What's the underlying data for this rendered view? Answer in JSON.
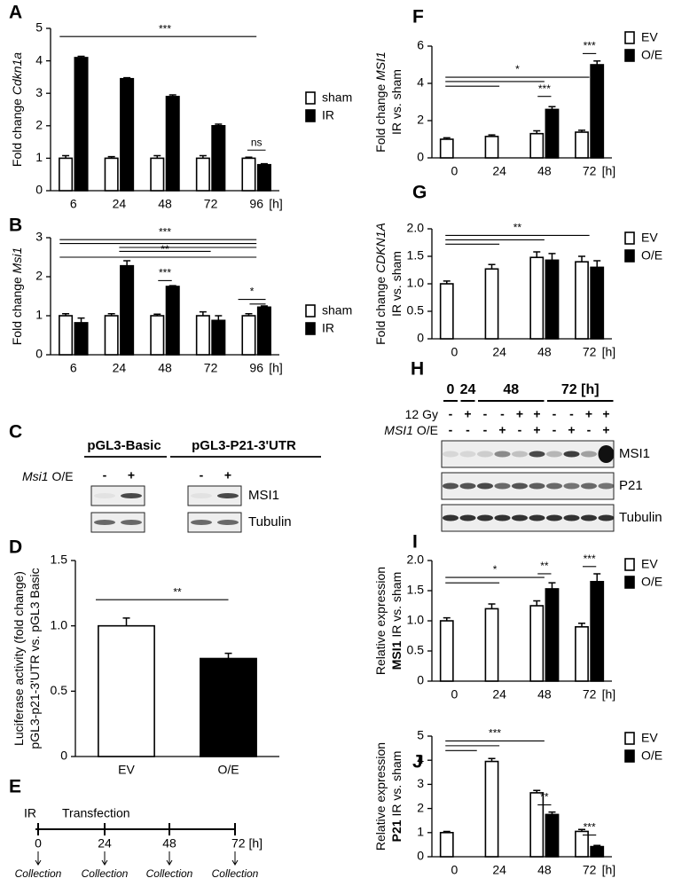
{
  "chart_data": [
    {
      "panel": "A",
      "type": "bar",
      "y_label": [
        [
          {
            "text": "Fold change "
          },
          {
            "text": "Cdkn1a",
            "style": "italic"
          }
        ]
      ],
      "categories": [
        "6",
        "24",
        "48",
        "72",
        "96"
      ],
      "x_unit": "[h]",
      "series": [
        {
          "name": "sham",
          "color": "#ffffff",
          "values": [
            1,
            1,
            1,
            1,
            1
          ],
          "errors": [
            0.08,
            0.05,
            0.08,
            0.08,
            0.03
          ]
        },
        {
          "name": "IR",
          "color": "#000000",
          "values": [
            4.1,
            3.45,
            2.9,
            2.0,
            0.8
          ],
          "errors": [
            0.04,
            0.03,
            0.05,
            0.05,
            0.03
          ]
        }
      ],
      "ylim": [
        0,
        5
      ],
      "yticks": [
        0,
        1,
        2,
        3,
        4,
        5
      ],
      "annotations": [
        "***",
        "ns"
      ]
    },
    {
      "panel": "B",
      "type": "bar",
      "y_label": [
        [
          {
            "text": "Fold change "
          },
          {
            "text": "Msi1",
            "style": "italic"
          }
        ]
      ],
      "categories": [
        "6",
        "24",
        "48",
        "72",
        "96"
      ],
      "x_unit": "[h]",
      "series": [
        {
          "name": "sham",
          "color": "#ffffff",
          "values": [
            1,
            1,
            1,
            1,
            1
          ],
          "errors": [
            0.05,
            0.05,
            0.04,
            0.1,
            0.05
          ]
        },
        {
          "name": "IR",
          "color": "#000000",
          "values": [
            0.82,
            2.28,
            1.75,
            0.88,
            1.22
          ],
          "errors": [
            0.12,
            0.13,
            0.02,
            0.12,
            0.03
          ]
        }
      ],
      "ylim": [
        0,
        3
      ],
      "yticks": [
        0,
        1,
        2,
        3
      ],
      "annotations": [
        "***",
        "**",
        "***",
        "*"
      ]
    },
    {
      "panel": "D",
      "type": "bar",
      "y_label": [
        [
          {
            "text": "Luciferase activity (fold change)"
          }
        ],
        [
          {
            "text": "pGL3-p21-3'UTR vs. pGL3 Basic"
          }
        ]
      ],
      "categories": [
        "EV",
        "O/E"
      ],
      "values": [
        1.0,
        0.75
      ],
      "errors": [
        0.06,
        0.04
      ],
      "colors": [
        "#ffffff",
        "#000000"
      ],
      "ylim": [
        0,
        1.5
      ],
      "yticks": [
        0,
        0.5,
        {
          "value": 1,
          "label": "1.0"
        },
        1.5
      ],
      "annotations": [
        "**"
      ]
    },
    {
      "panel": "F",
      "type": "bar",
      "y_label": [
        [
          {
            "text": "Fold change "
          },
          {
            "text": "MSI1",
            "style": "italic"
          }
        ],
        [
          {
            "text": "IR vs. sham"
          }
        ]
      ],
      "categories": [
        "0",
        "24",
        "48",
        "72"
      ],
      "x_unit": "[h]",
      "series": [
        {
          "name": "EV",
          "color": "#ffffff",
          "values": [
            1.0,
            1.15,
            1.3,
            1.38
          ],
          "errors": [
            0.08,
            0.08,
            0.15,
            0.1
          ]
        },
        {
          "name": "O/E",
          "color": "#000000",
          "values": [
            null,
            null,
            2.6,
            5.0
          ],
          "errors": [
            null,
            null,
            0.15,
            0.2
          ]
        }
      ],
      "ylim": [
        0,
        6
      ],
      "yticks": [
        0,
        2,
        4,
        6
      ],
      "annotations": [
        "*",
        "***",
        "***"
      ]
    },
    {
      "panel": "G",
      "type": "bar",
      "y_label": [
        [
          {
            "text": "Fold change "
          },
          {
            "text": "CDKN1A",
            "style": "italic"
          }
        ],
        [
          {
            "text": "IR vs. sham"
          }
        ]
      ],
      "categories": [
        "0",
        "24",
        "48",
        "72"
      ],
      "x_unit": "[h]",
      "series": [
        {
          "name": "EV",
          "color": "#ffffff",
          "values": [
            1.0,
            1.27,
            1.48,
            1.4
          ],
          "errors": [
            0.05,
            0.08,
            0.1,
            0.1
          ]
        },
        {
          "name": "O/E",
          "color": "#000000",
          "values": [
            null,
            null,
            1.43,
            1.3
          ],
          "errors": [
            null,
            null,
            0.12,
            0.12
          ]
        }
      ],
      "ylim": [
        0,
        2
      ],
      "yticks": [
        0,
        0.5,
        {
          "value": 1,
          "label": "1.0"
        },
        1.5,
        {
          "value": 2,
          "label": "2.0"
        }
      ],
      "annotations": [
        "**"
      ]
    },
    {
      "panel": "I",
      "type": "bar",
      "y_label": [
        [
          {
            "text": "Relative expression"
          }
        ],
        [
          {
            "text": "MSI1",
            "style": "bold"
          },
          {
            "text": " IR vs. sham"
          }
        ]
      ],
      "categories": [
        "0",
        "24",
        "48",
        "72"
      ],
      "x_unit": "[h]",
      "series": [
        {
          "name": "EV",
          "color": "#ffffff",
          "values": [
            1.0,
            1.2,
            1.25,
            0.9
          ],
          "errors": [
            0.05,
            0.08,
            0.08,
            0.06
          ]
        },
        {
          "name": "O/E",
          "color": "#000000",
          "values": [
            null,
            null,
            1.53,
            1.65
          ],
          "errors": [
            null,
            null,
            0.1,
            0.13
          ]
        }
      ],
      "ylim": [
        0,
        2
      ],
      "yticks": [
        0,
        0.5,
        {
          "value": 1,
          "label": "1.0"
        },
        1.5,
        {
          "value": 2,
          "label": "2.0"
        }
      ],
      "annotations": [
        "*",
        "**",
        "***"
      ]
    },
    {
      "panel": "J",
      "type": "bar",
      "y_label": [
        [
          {
            "text": "Relative expression"
          }
        ],
        [
          {
            "text": "P21",
            "style": "bold"
          },
          {
            "text": " IR vs. sham"
          }
        ]
      ],
      "categories": [
        "0",
        "24",
        "48",
        "72"
      ],
      "x_unit": "[h]",
      "series": [
        {
          "name": "EV",
          "color": "#ffffff",
          "values": [
            1.0,
            3.95,
            2.65,
            1.05
          ],
          "errors": [
            0.05,
            0.12,
            0.1,
            0.08
          ]
        },
        {
          "name": "O/E",
          "color": "#000000",
          "values": [
            null,
            null,
            1.75,
            0.42
          ],
          "errors": [
            null,
            null,
            0.1,
            0.05
          ]
        }
      ],
      "ylim": [
        0,
        5
      ],
      "yticks": [
        0,
        1,
        2,
        3,
        4,
        5
      ],
      "annotations": [
        "***",
        "**",
        "***"
      ]
    }
  ],
  "blot_C": {
    "panel": "C",
    "constructs": [
      "pGL3-Basic",
      "pGL3-P21-3'UTR"
    ],
    "row_label": [
      {
        "text": "Msi1",
        "style": "italic"
      },
      {
        "text": " O/E"
      }
    ],
    "signs": [
      "-",
      "+"
    ],
    "bands": [
      "MSI1",
      "Tubulin"
    ]
  },
  "timeline_E": {
    "panel": "E",
    "events": [
      "IR",
      "Transfection"
    ],
    "ticks": [
      "0",
      "24",
      "48",
      "72 [h]"
    ],
    "collection": "Collection"
  },
  "blot_H": {
    "panel": "H",
    "times": [
      "0",
      "24",
      "48",
      "72 [h]"
    ],
    "rows": [
      {
        "label": [
          {
            "text": "12 Gy"
          }
        ],
        "signs": [
          "-",
          "+",
          "-",
          "-",
          "+",
          "+",
          "-",
          "-",
          "+",
          "+"
        ]
      },
      {
        "label": [
          {
            "text": "MSI1",
            "style": "italic"
          },
          {
            "text": " O/E"
          }
        ],
        "signs": [
          "-",
          "-",
          "-",
          "+",
          "-",
          "+",
          "-",
          "+",
          "-",
          "+"
        ]
      }
    ],
    "bands": [
      "MSI1",
      "P21",
      "Tubulin"
    ]
  }
}
